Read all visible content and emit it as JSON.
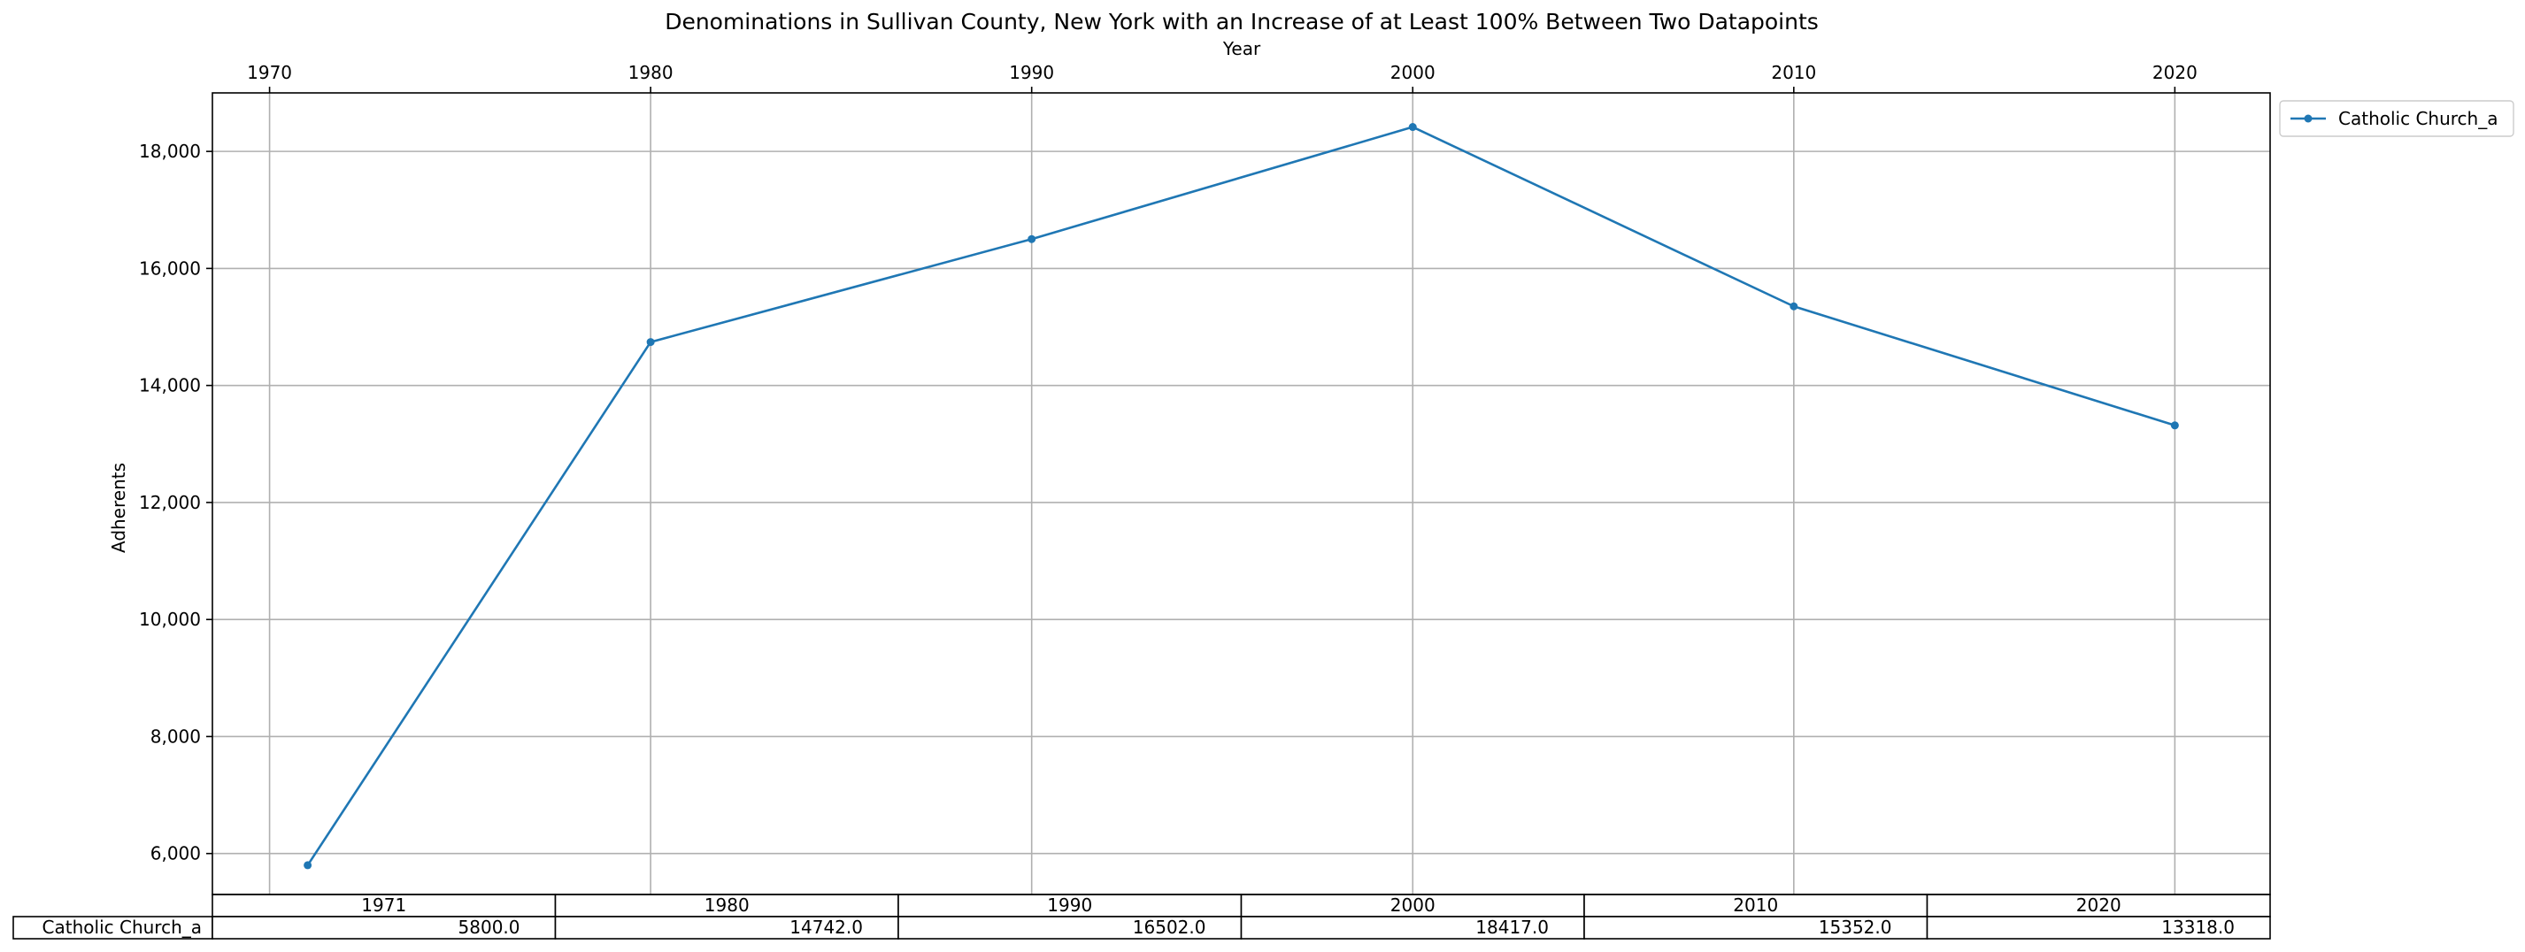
{
  "chart_data": {
    "type": "line",
    "title": "Denominations in Sullivan County, New York with an Increase of at Least 100% Between Two Datapoints",
    "xlabel": "Year",
    "ylabel": "Adherents",
    "x": [
      1971,
      1980,
      1990,
      2000,
      2010,
      2020
    ],
    "xticks": [
      1970,
      1980,
      1990,
      2000,
      2010,
      2020
    ],
    "xlim": [
      1968.5,
      2022.5
    ],
    "yticks": [
      6000,
      8000,
      10000,
      12000,
      14000,
      16000,
      18000
    ],
    "ytick_labels": [
      "6,000",
      "8,000",
      "10,000",
      "12,000",
      "14,000",
      "16,000",
      "18,000"
    ],
    "ylim": [
      5300,
      19000
    ],
    "grid": true,
    "legend_position": "outside-top-right",
    "x_axis_position": "top",
    "series": [
      {
        "name": "Catholic Church_a",
        "color": "#1f77b4",
        "values": [
          5800,
          14742,
          16502,
          18417,
          15352,
          13318
        ]
      }
    ],
    "table": {
      "col_labels": [
        "1971",
        "1980",
        "1990",
        "2000",
        "2010",
        "2020"
      ],
      "rows": [
        {
          "label": "Catholic Church_a",
          "cells": [
            "5800.0",
            "14742.0",
            "16502.0",
            "18417.0",
            "15352.0",
            "13318.0"
          ]
        }
      ]
    }
  }
}
